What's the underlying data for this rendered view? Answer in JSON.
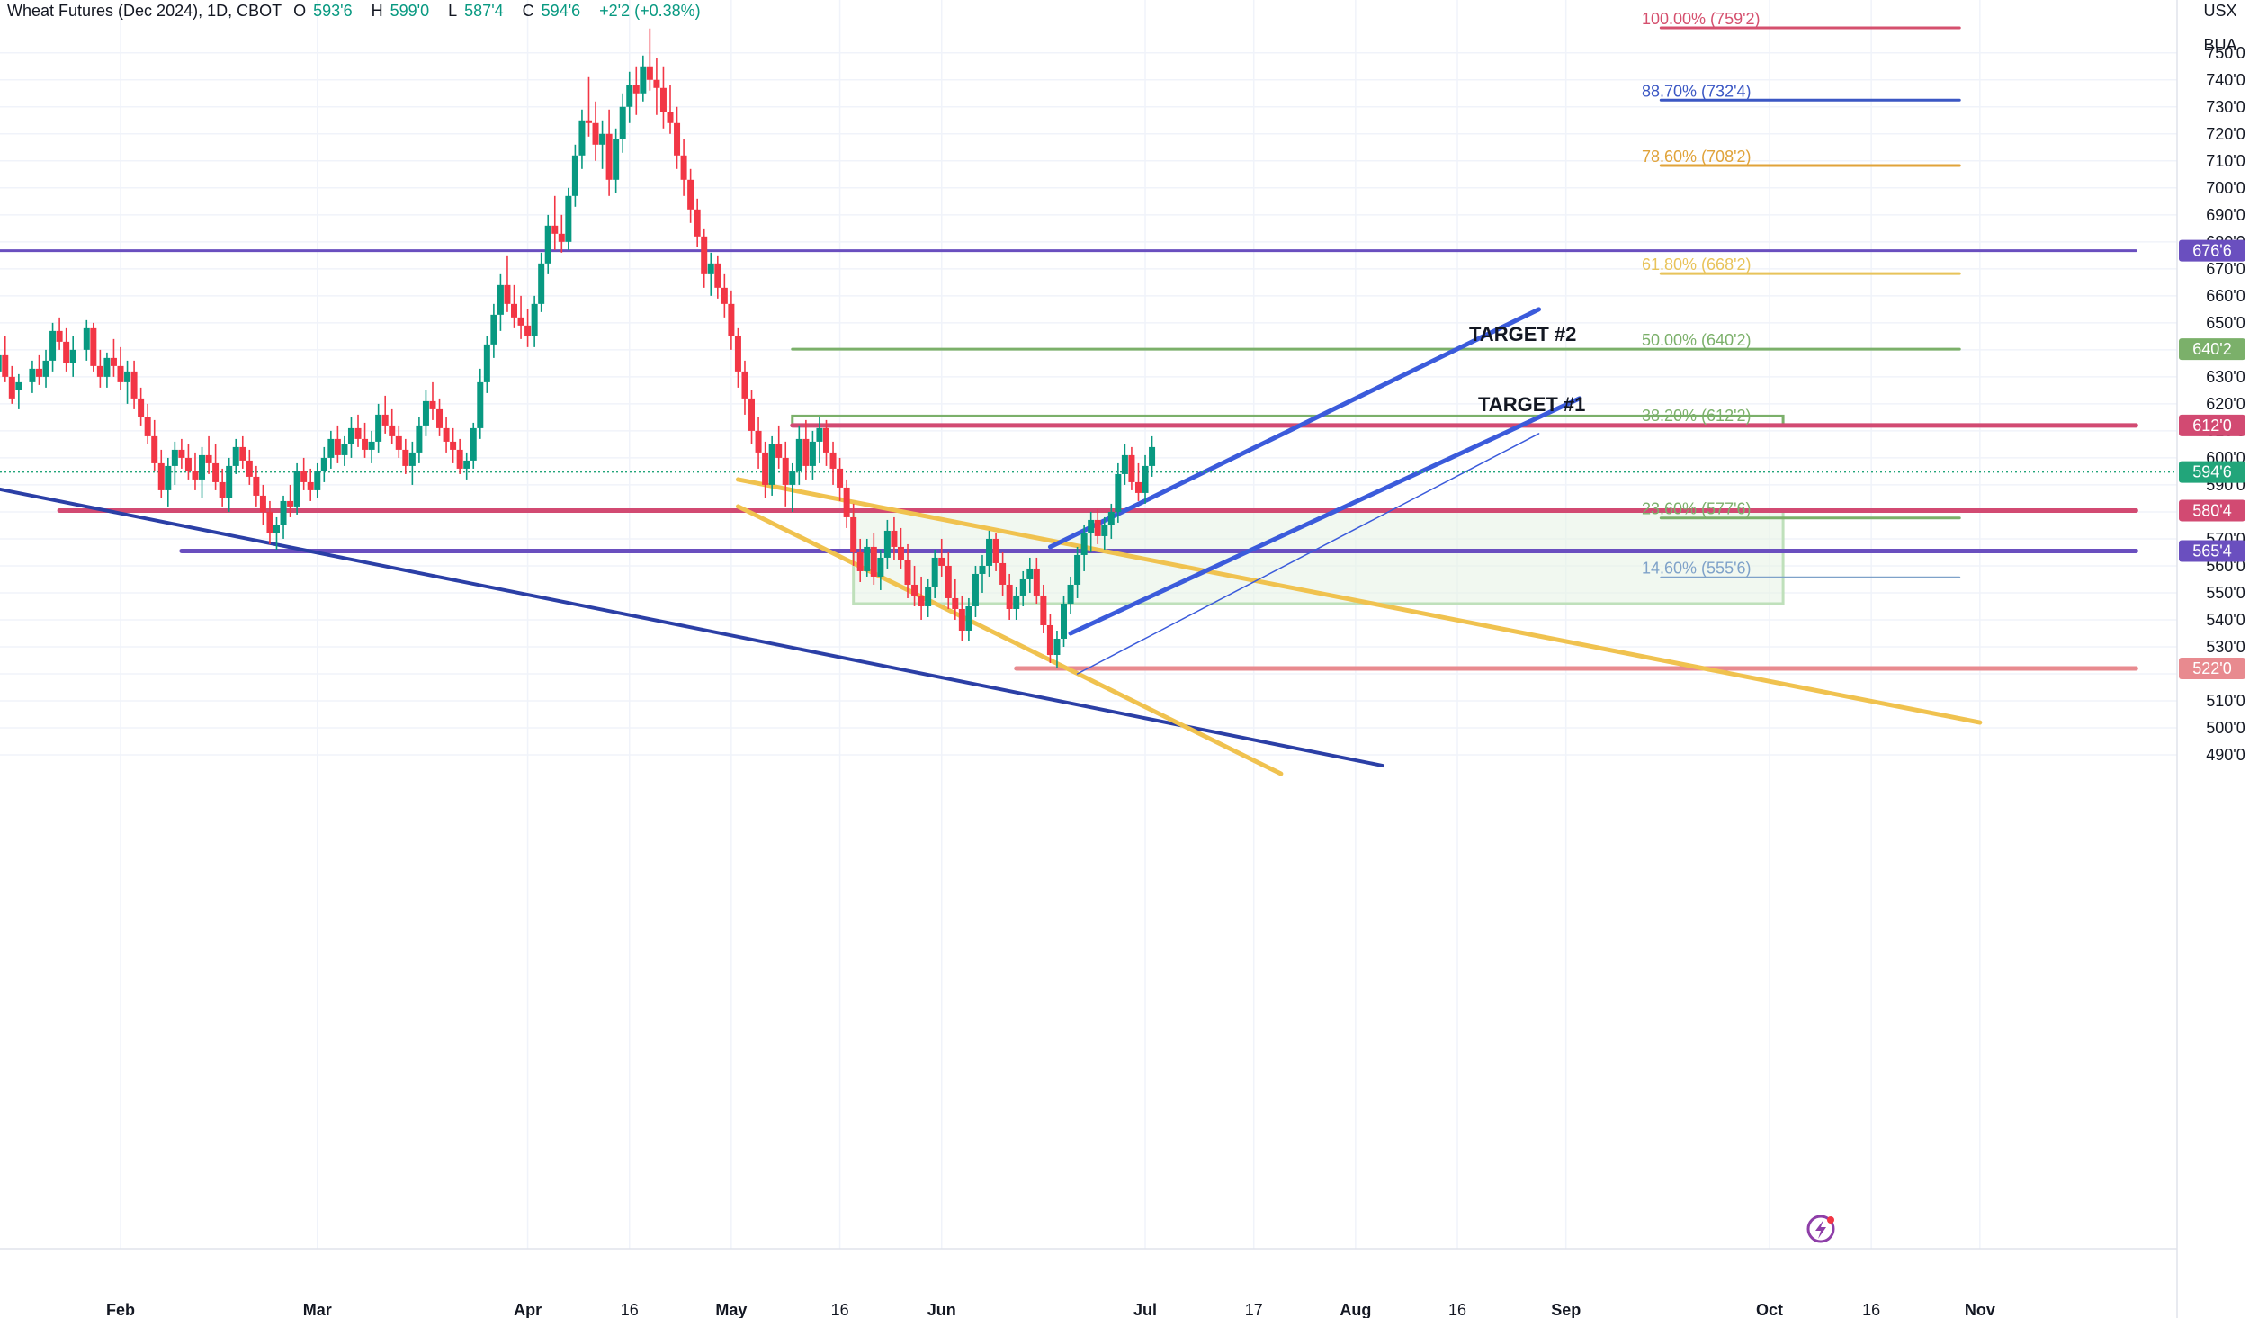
{
  "header": {
    "symbol": "Wheat Futures (Dec 2024), 1D, CBOT",
    "open_label": "O",
    "open": "593'6",
    "high_label": "H",
    "high": "599'0",
    "low_label": "L",
    "low": "587'4",
    "close_label": "C",
    "close": "594'6",
    "change": "+2'2 (+0.38%)"
  },
  "units": {
    "currency": "USX",
    "unit": "BUA"
  },
  "colors": {
    "up": "#089981",
    "down": "#f23645",
    "grid": "#f0f3fa",
    "fib100": "#d5506e",
    "fib887": "#3b57c4",
    "fib786": "#e0a33a",
    "fib618": "#e8c35a",
    "fib50": "#7bb06a",
    "fib382": "#7bb06a",
    "fib236": "#7fa2c9",
    "purple": "#6a4fbf",
    "pink": "#d24a72",
    "blue_channel": "#3b5bdb",
    "orange_channel": "#f0c24f",
    "downtrend": "#2b3fa6"
  },
  "chart_data": {
    "type": "candlestick",
    "title": "Wheat Futures (Dec 2024), 1D, CBOT",
    "ylim": [
      484,
      762
    ],
    "y_ticks": [
      490,
      500,
      510,
      520,
      530,
      540,
      550,
      560,
      570,
      580,
      590,
      600,
      610,
      620,
      630,
      640,
      650,
      660,
      670,
      680,
      690,
      700,
      710,
      720,
      730,
      740,
      750
    ],
    "y_tick_format": "'0",
    "x_ticks": [
      {
        "day": 29,
        "label": "Feb",
        "bold": true
      },
      {
        "day": 58,
        "label": "Mar",
        "bold": true
      },
      {
        "day": 89,
        "label": "Apr",
        "bold": true
      },
      {
        "day": 104,
        "label": "16",
        "bold": false
      },
      {
        "day": 119,
        "label": "May",
        "bold": true
      },
      {
        "day": 135,
        "label": "16",
        "bold": false
      },
      {
        "day": 150,
        "label": "Jun",
        "bold": true
      },
      {
        "day": 180,
        "label": "Jul",
        "bold": true
      },
      {
        "day": 196,
        "label": "17",
        "bold": false
      },
      {
        "day": 211,
        "label": "Aug",
        "bold": true
      },
      {
        "day": 226,
        "label": "16",
        "bold": false
      },
      {
        "day": 242,
        "label": "Sep",
        "bold": true
      },
      {
        "day": 272,
        "label": "Oct",
        "bold": true
      },
      {
        "day": 287,
        "label": "16",
        "bold": false
      },
      {
        "day": 303,
        "label": "Nov",
        "bold": true
      }
    ],
    "x_range_days": [
      11,
      326
    ],
    "price_tags": [
      {
        "label": "676'6",
        "value": 676.75,
        "color": "#6a4fbf"
      },
      {
        "label": "640'2",
        "value": 640.25,
        "color": "#7bb06a"
      },
      {
        "label": "612'0",
        "value": 612,
        "color": "#d24a72"
      },
      {
        "label": "594'6",
        "value": 594.75,
        "color": "#22a57a"
      },
      {
        "label": "580'4",
        "value": 580.5,
        "color": "#d24a72"
      },
      {
        "label": "565'4",
        "value": 565.5,
        "color": "#6a4fbf"
      },
      {
        "label": "522'0",
        "value": 522,
        "color": "#e88a8f"
      }
    ],
    "fib_levels": [
      {
        "label": "100.00% (759'2)",
        "value": 759.25,
        "color": "#d5506e"
      },
      {
        "label": "88.70% (732'4)",
        "value": 732.5,
        "color": "#3b57c4"
      },
      {
        "label": "78.60% (708'2)",
        "value": 708.25,
        "color": "#e0a33a"
      },
      {
        "label": "61.80% (668'2)",
        "value": 668.25,
        "color": "#e8c35a"
      },
      {
        "label": "50.00% (640'2)",
        "value": 640.25,
        "color": "#7bb06a"
      },
      {
        "label": "38.20% (612'2)",
        "value": 612.25,
        "color": "#7bb06a"
      },
      {
        "label": "23.60% (577'6)",
        "value": 577.75,
        "color": "#7bb06a"
      },
      {
        "label": "14.60% (555'6)",
        "value": 555.75,
        "color": "#7fa2c9"
      }
    ],
    "annotations": [
      {
        "text": "TARGET #2",
        "value": 640
      },
      {
        "text": "TARGET #1",
        "value": 614
      }
    ],
    "candles": [
      [
        11,
        632,
        640,
        625,
        638
      ],
      [
        12,
        638,
        645,
        628,
        630
      ],
      [
        13,
        630,
        634,
        620,
        622
      ],
      [
        14,
        625,
        631,
        618,
        628
      ],
      [
        16,
        628,
        636,
        624,
        633
      ],
      [
        17,
        633,
        638,
        627,
        630
      ],
      [
        18,
        630,
        640,
        626,
        636
      ],
      [
        19,
        636,
        650,
        632,
        647
      ],
      [
        20,
        647,
        652,
        640,
        643
      ],
      [
        21,
        643,
        648,
        632,
        635
      ],
      [
        22,
        635,
        645,
        630,
        640
      ],
      [
        24,
        640,
        651,
        636,
        648
      ],
      [
        25,
        648,
        650,
        632,
        634
      ],
      [
        26,
        634,
        640,
        626,
        630
      ],
      [
        27,
        630,
        639,
        626,
        637
      ],
      [
        28,
        637,
        644,
        630,
        634
      ],
      [
        29,
        634,
        641,
        625,
        628
      ],
      [
        30,
        628,
        636,
        620,
        632
      ],
      [
        31,
        632,
        636,
        618,
        622
      ],
      [
        32,
        622,
        626,
        612,
        615
      ],
      [
        33,
        615,
        620,
        605,
        608
      ],
      [
        34,
        608,
        614,
        595,
        598
      ],
      [
        35,
        598,
        603,
        585,
        588
      ],
      [
        36,
        588,
        600,
        582,
        597
      ],
      [
        37,
        597,
        606,
        590,
        603
      ],
      [
        38,
        603,
        607,
        596,
        600
      ],
      [
        39,
        600,
        605,
        592,
        595
      ],
      [
        40,
        595,
        602,
        588,
        592
      ],
      [
        41,
        592,
        604,
        585,
        601
      ],
      [
        42,
        601,
        608,
        594,
        598
      ],
      [
        43,
        598,
        605,
        588,
        591
      ],
      [
        44,
        591,
        596,
        582,
        585
      ],
      [
        45,
        585,
        600,
        580,
        597
      ],
      [
        46,
        597,
        607,
        594,
        604
      ],
      [
        47,
        604,
        608,
        596,
        599
      ],
      [
        48,
        599,
        603,
        590,
        593
      ],
      [
        49,
        593,
        597,
        582,
        586
      ],
      [
        50,
        586,
        590,
        575,
        580
      ],
      [
        51,
        580,
        584,
        568,
        572
      ],
      [
        52,
        572,
        578,
        566,
        575
      ],
      [
        53,
        575,
        586,
        570,
        584
      ],
      [
        54,
        584,
        590,
        578,
        582
      ],
      [
        55,
        582,
        598,
        579,
        595
      ],
      [
        56,
        595,
        600,
        588,
        591
      ],
      [
        57,
        591,
        596,
        584,
        588
      ],
      [
        58,
        588,
        598,
        585,
        595
      ],
      [
        59,
        595,
        604,
        591,
        600
      ],
      [
        60,
        600,
        610,
        596,
        607
      ],
      [
        61,
        607,
        612,
        598,
        601
      ],
      [
        62,
        601,
        608,
        597,
        605
      ],
      [
        63,
        605,
        615,
        600,
        611
      ],
      [
        64,
        611,
        616,
        604,
        607
      ],
      [
        65,
        607,
        613,
        600,
        603
      ],
      [
        66,
        603,
        610,
        598,
        606
      ],
      [
        67,
        606,
        620,
        602,
        616
      ],
      [
        68,
        616,
        623,
        609,
        612
      ],
      [
        69,
        612,
        618,
        605,
        608
      ],
      [
        70,
        608,
        612,
        600,
        603
      ],
      [
        71,
        603,
        607,
        594,
        597
      ],
      [
        72,
        597,
        606,
        590,
        602
      ],
      [
        73,
        602,
        615,
        598,
        612
      ],
      [
        74,
        612,
        625,
        608,
        621
      ],
      [
        75,
        621,
        628,
        614,
        618
      ],
      [
        76,
        618,
        622,
        608,
        611
      ],
      [
        77,
        611,
        615,
        602,
        606
      ],
      [
        78,
        606,
        611,
        598,
        603
      ],
      [
        79,
        603,
        607,
        594,
        596
      ],
      [
        80,
        596,
        602,
        592,
        599
      ],
      [
        81,
        599,
        613,
        596,
        611
      ],
      [
        82,
        611,
        633,
        607,
        628
      ],
      [
        83,
        628,
        645,
        624,
        642
      ],
      [
        84,
        642,
        657,
        637,
        653
      ],
      [
        85,
        653,
        668,
        647,
        664
      ],
      [
        86,
        664,
        675,
        654,
        657
      ],
      [
        87,
        657,
        664,
        648,
        652
      ],
      [
        88,
        652,
        660,
        644,
        649
      ],
      [
        89,
        649,
        655,
        641,
        645
      ],
      [
        90,
        645,
        660,
        641,
        657
      ],
      [
        91,
        657,
        676,
        654,
        672
      ],
      [
        92,
        672,
        690,
        668,
        686
      ],
      [
        93,
        686,
        697,
        677,
        683
      ],
      [
        94,
        683,
        690,
        676,
        680
      ],
      [
        95,
        680,
        700,
        677,
        697
      ],
      [
        96,
        697,
        716,
        693,
        712
      ],
      [
        97,
        712,
        729,
        707,
        725
      ],
      [
        98,
        725,
        741,
        719,
        724
      ],
      [
        99,
        724,
        732,
        710,
        716
      ],
      [
        100,
        716,
        725,
        707,
        720
      ],
      [
        101,
        720,
        729,
        697,
        703
      ],
      [
        102,
        703,
        722,
        698,
        718
      ],
      [
        103,
        718,
        735,
        713,
        730
      ],
      [
        104,
        730,
        743,
        724,
        738
      ],
      [
        105,
        738,
        745,
        727,
        735
      ],
      [
        106,
        735,
        749,
        732,
        745
      ],
      [
        107,
        745,
        759,
        736,
        740
      ],
      [
        108,
        740,
        748,
        727,
        737
      ],
      [
        109,
        737,
        745,
        722,
        728
      ],
      [
        110,
        728,
        738,
        720,
        724
      ],
      [
        111,
        724,
        730,
        707,
        712
      ],
      [
        112,
        712,
        718,
        697,
        703
      ],
      [
        113,
        703,
        707,
        687,
        692
      ],
      [
        114,
        692,
        696,
        678,
        682
      ],
      [
        115,
        682,
        685,
        663,
        668
      ],
      [
        116,
        668,
        676,
        660,
        672
      ],
      [
        117,
        672,
        675,
        659,
        663
      ],
      [
        118,
        663,
        668,
        652,
        657
      ],
      [
        119,
        657,
        662,
        640,
        645
      ],
      [
        120,
        645,
        648,
        626,
        632
      ],
      [
        121,
        632,
        636,
        616,
        622
      ],
      [
        122,
        622,
        625,
        605,
        610
      ],
      [
        123,
        610,
        615,
        596,
        602
      ],
      [
        124,
        602,
        606,
        585,
        590
      ],
      [
        125,
        590,
        608,
        586,
        605
      ],
      [
        126,
        605,
        612,
        596,
        600
      ],
      [
        127,
        600,
        606,
        582,
        590
      ],
      [
        128,
        590,
        598,
        580,
        595
      ],
      [
        129,
        595,
        612,
        590,
        607
      ],
      [
        130,
        607,
        614,
        592,
        597
      ],
      [
        131,
        597,
        610,
        592,
        606
      ],
      [
        132,
        606,
        615,
        598,
        611
      ],
      [
        133,
        611,
        614,
        597,
        602
      ],
      [
        134,
        602,
        606,
        590,
        596
      ],
      [
        135,
        596,
        600,
        584,
        589
      ],
      [
        136,
        589,
        592,
        574,
        578
      ],
      [
        137,
        578,
        583,
        560,
        565
      ],
      [
        138,
        565,
        570,
        554,
        558
      ],
      [
        139,
        558,
        570,
        556,
        567
      ],
      [
        140,
        567,
        572,
        553,
        556
      ],
      [
        141,
        556,
        566,
        551,
        563
      ],
      [
        142,
        563,
        577,
        559,
        573
      ],
      [
        143,
        573,
        578,
        562,
        567
      ],
      [
        144,
        567,
        574,
        559,
        562
      ],
      [
        145,
        562,
        568,
        548,
        553
      ],
      [
        146,
        553,
        560,
        545,
        549
      ],
      [
        147,
        549,
        556,
        540,
        545
      ],
      [
        148,
        545,
        555,
        541,
        552
      ],
      [
        149,
        552,
        566,
        548,
        563
      ],
      [
        150,
        563,
        570,
        556,
        560
      ],
      [
        151,
        560,
        565,
        544,
        548
      ],
      [
        152,
        548,
        555,
        540,
        544
      ],
      [
        153,
        544,
        549,
        532,
        536
      ],
      [
        154,
        536,
        548,
        532,
        545
      ],
      [
        155,
        545,
        560,
        541,
        557
      ],
      [
        156,
        557,
        564,
        550,
        560
      ],
      [
        157,
        560,
        573,
        556,
        570
      ],
      [
        158,
        570,
        572,
        558,
        561
      ],
      [
        159,
        561,
        565,
        549,
        553
      ],
      [
        160,
        553,
        557,
        540,
        544
      ],
      [
        161,
        544,
        552,
        540,
        549
      ],
      [
        162,
        549,
        558,
        545,
        555
      ],
      [
        163,
        555,
        563,
        550,
        559
      ],
      [
        164,
        559,
        563,
        546,
        549
      ],
      [
        165,
        549,
        553,
        535,
        538
      ],
      [
        166,
        538,
        542,
        524,
        527
      ],
      [
        167,
        527,
        536,
        522,
        533
      ],
      [
        168,
        533,
        549,
        530,
        546
      ],
      [
        169,
        546,
        556,
        542,
        553
      ],
      [
        170,
        553,
        567,
        548,
        564
      ],
      [
        171,
        564,
        575,
        558,
        572
      ],
      [
        172,
        572,
        580,
        565,
        577
      ],
      [
        173,
        577,
        581,
        568,
        571
      ],
      [
        174,
        571,
        578,
        566,
        575
      ],
      [
        175,
        575,
        583,
        570,
        580
      ],
      [
        176,
        580,
        598,
        576,
        594
      ],
      [
        177,
        594,
        605,
        590,
        601
      ],
      [
        178,
        601,
        604,
        588,
        591
      ],
      [
        179,
        591,
        598,
        584,
        587
      ],
      [
        180,
        587,
        601,
        583,
        597
      ],
      [
        181,
        597,
        608,
        593,
        604
      ]
    ]
  }
}
